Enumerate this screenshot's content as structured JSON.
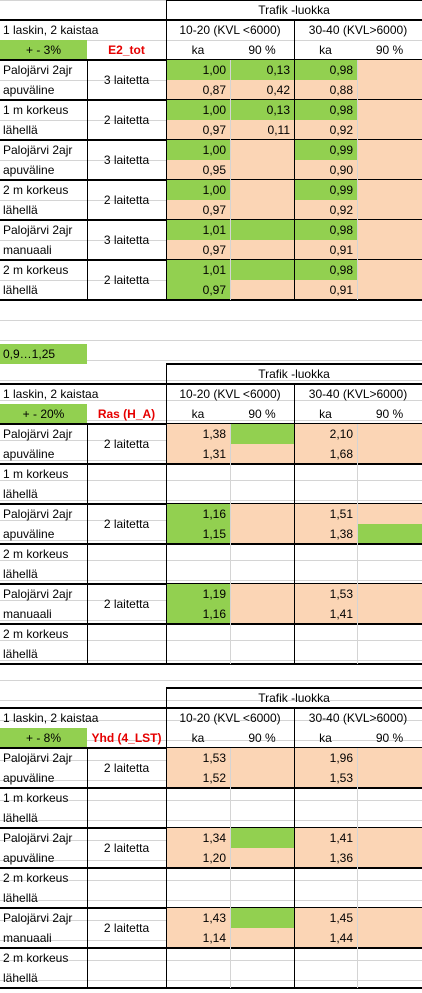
{
  "blocks": [
    {
      "lead": "",
      "header": "Trafik -luokka",
      "laskin": "1 laskin, 2 kaistaa",
      "tol": "+ - 3%",
      "metric": "E2_tot",
      "c1": "10-20 (KVL <6000)",
      "c2": "30-40 (KVL>6000)",
      "ka": "ka",
      "p90": "90 %",
      "groups": [
        {
          "l1": "Palojärvi 2ajr",
          "l2": "apuväline",
          "dev": "3 laitetta",
          "rows": [
            {
              "a": "1,00",
              "b": "0,13",
              "c": "0,98",
              "d": ""
            },
            {
              "a": "0,87",
              "b": "0,42",
              "c": "0,88",
              "d": ""
            }
          ]
        },
        {
          "l1": "1 m korkeus",
          "l2": "lähellä",
          "dev": "2 laitetta",
          "rows": [
            {
              "a": "1,00",
              "b": "0,13",
              "c": "0,98",
              "d": ""
            },
            {
              "a": "0,97",
              "b": "0,11",
              "c": "0,92",
              "d": ""
            }
          ]
        },
        {
          "l1": "Palojärvi 2ajr",
          "l2": "apuväline",
          "dev": "3 laitetta",
          "rows": [
            {
              "a": "1,00",
              "b": "",
              "c": "0,99",
              "d": ""
            },
            {
              "a": "0,95",
              "b": "",
              "c": "0,90",
              "d": ""
            }
          ]
        },
        {
          "l1": "2 m korkeus",
          "l2": "lähellä",
          "dev": "2 laitetta",
          "rows": [
            {
              "a": "1,00",
              "b": "",
              "c": "0,99",
              "d": ""
            },
            {
              "a": "0,97",
              "b": "",
              "c": "0,92",
              "d": ""
            }
          ]
        },
        {
          "l1": "Palojärvi 2ajr",
          "l2": "manuaali",
          "dev": "3 laitetta",
          "rows": [
            {
              "a": "1,01",
              "b": "",
              "c": "0,98",
              "d": ""
            },
            {
              "a": "0,97",
              "b": "",
              "c": "0,91",
              "d": ""
            }
          ]
        },
        {
          "l1": "2 m korkeus",
          "l2": "lähellä",
          "dev": "2 laitetta",
          "rows": [
            {
              "a": "1,01",
              "b": "",
              "c": "0,98",
              "d": ""
            },
            {
              "a": "0,97",
              "b": "",
              "c": "0,91",
              "d": ""
            }
          ]
        }
      ]
    },
    {
      "lead": "0,9…1,25",
      "header": "Trafik -luokka",
      "laskin": "1 laskin, 2 kaistaa",
      "tol": "+ - 20%",
      "metric": "Ras (H_A)",
      "c1": "10-20 (KVL <6000)",
      "c2": "30-40 (KVL>6000)",
      "ka": "ka",
      "p90": "90 %",
      "groups": [
        {
          "l1": "Palojärvi 2ajr",
          "l2": "apuväline",
          "dev": "2 laitetta",
          "rows": [
            {
              "a": "1,38",
              "b": "",
              "c": "2,10",
              "d": ""
            },
            {
              "a": "1,31",
              "b": "",
              "c": "1,68",
              "d": ""
            }
          ]
        },
        {
          "l1": "1 m korkeus",
          "l2": "lähellä",
          "dev": "",
          "rows": [
            {
              "a": "",
              "b": "",
              "c": "",
              "d": ""
            },
            {
              "a": "",
              "b": "",
              "c": "",
              "d": ""
            }
          ]
        },
        {
          "l1": "Palojärvi 2ajr",
          "l2": "apuväline",
          "dev": "2 laitetta",
          "rows": [
            {
              "a": "1,16",
              "b": "",
              "c": "1,51",
              "d": ""
            },
            {
              "a": "1,15",
              "b": "",
              "c": "1,38",
              "d": ""
            }
          ]
        },
        {
          "l1": "2 m korkeus",
          "l2": "lähellä",
          "dev": "",
          "rows": [
            {
              "a": "",
              "b": "",
              "c": "",
              "d": ""
            },
            {
              "a": "",
              "b": "",
              "c": "",
              "d": ""
            }
          ]
        },
        {
          "l1": "Palojärvi 2ajr",
          "l2": "manuaali",
          "dev": "2 laitetta",
          "rows": [
            {
              "a": "1,19",
              "b": "",
              "c": "1,53",
              "d": ""
            },
            {
              "a": "1,16",
              "b": "",
              "c": "1,41",
              "d": ""
            }
          ]
        },
        {
          "l1": "2 m korkeus",
          "l2": "lähellä",
          "dev": "",
          "rows": [
            {
              "a": "",
              "b": "",
              "c": "",
              "d": ""
            },
            {
              "a": "",
              "b": "",
              "c": "",
              "d": ""
            }
          ]
        }
      ]
    },
    {
      "lead": "",
      "header": "Trafik -luokka",
      "laskin": "1 laskin, 2 kaistaa",
      "tol": "+ - 8%",
      "metric": "Yhd (4_LST)",
      "c1": "10-20 (KVL <6000)",
      "c2": "30-40 (KVL>6000)",
      "ka": "ka",
      "p90": "90 %",
      "groups": [
        {
          "l1": "Palojärvi 2ajr",
          "l2": "apuväline",
          "dev": "2 laitetta",
          "rows": [
            {
              "a": "1,53",
              "b": "",
              "c": "1,96",
              "d": ""
            },
            {
              "a": "1,52",
              "b": "",
              "c": "1,53",
              "d": ""
            }
          ]
        },
        {
          "l1": "1 m korkeus",
          "l2": "lähellä",
          "dev": "",
          "rows": [
            {
              "a": "",
              "b": "",
              "c": "",
              "d": ""
            },
            {
              "a": "",
              "b": "",
              "c": "",
              "d": ""
            }
          ]
        },
        {
          "l1": "Palojärvi 2ajr",
          "l2": "apuväline",
          "dev": "2 laitetta",
          "rows": [
            {
              "a": "1,34",
              "b": "",
              "c": "1,41",
              "d": ""
            },
            {
              "a": "1,20",
              "b": "",
              "c": "1,36",
              "d": ""
            }
          ]
        },
        {
          "l1": "2 m korkeus",
          "l2": "lähellä",
          "dev": "",
          "rows": [
            {
              "a": "",
              "b": "",
              "c": "",
              "d": ""
            },
            {
              "a": "",
              "b": "",
              "c": "",
              "d": ""
            }
          ]
        },
        {
          "l1": "Palojärvi 2ajr",
          "l2": "manuaali",
          "dev": "2 laitetta",
          "rows": [
            {
              "a": "1,43",
              "b": "",
              "c": "1,45",
              "d": ""
            },
            {
              "a": "1,14",
              "b": "",
              "c": "1,44",
              "d": ""
            }
          ]
        },
        {
          "l1": "2 m korkeus",
          "l2": "lähellä",
          "dev": "",
          "rows": [
            {
              "a": "",
              "b": "",
              "c": "",
              "d": ""
            },
            {
              "a": "",
              "b": "",
              "c": "",
              "d": ""
            }
          ]
        }
      ]
    }
  ],
  "colors": {
    "green": "#92d050",
    "peach": "#fbd5b5",
    "red": "#e60000",
    "grid": "#d4d4d4"
  },
  "fills": [
    [
      [
        "gp",
        "gp",
        "gp",
        "p"
      ],
      [
        "pp",
        "pp",
        "pp",
        "p"
      ],
      [
        "gp",
        "gp",
        "gp",
        "p"
      ],
      [
        "pp",
        "pp",
        "pp",
        "p"
      ],
      [
        "gp",
        "p",
        "gp",
        "p"
      ],
      [
        "pp",
        "p",
        "pp",
        "p"
      ],
      [
        "gp",
        "p",
        "gp",
        "p"
      ],
      [
        "pp",
        "p",
        "pp",
        "p"
      ],
      [
        "gp",
        "g",
        "gp",
        "p"
      ],
      [
        "pp",
        "p",
        "pp",
        "p"
      ],
      [
        "gp",
        "g",
        "gp",
        "p"
      ],
      [
        "gp",
        "p",
        "pp",
        "p"
      ]
    ],
    [
      [
        "pp",
        "g",
        "pp",
        "p"
      ],
      [
        "pp",
        "p",
        "pp",
        "p"
      ],
      [
        "",
        "",
        "",
        ""
      ],
      [
        "",
        "",
        "",
        ""
      ],
      [
        "gp",
        "p",
        "pp",
        "p"
      ],
      [
        "gp",
        "p",
        "pp",
        "g"
      ],
      [
        "",
        "",
        "",
        ""
      ],
      [
        "",
        "",
        "",
        ""
      ],
      [
        "gp",
        "p",
        "pp",
        "p"
      ],
      [
        "gp",
        "p",
        "pp",
        "p"
      ],
      [
        "",
        "",
        "",
        ""
      ],
      [
        "",
        "",
        "",
        ""
      ]
    ],
    [
      [
        "pp",
        "p",
        "pp",
        "p"
      ],
      [
        "pp",
        "p",
        "pp",
        "p"
      ],
      [
        "",
        "",
        "",
        ""
      ],
      [
        "",
        "",
        "",
        ""
      ],
      [
        "pp",
        "g",
        "pp",
        "p"
      ],
      [
        "pp",
        "p",
        "pp",
        "p"
      ],
      [
        "",
        "",
        "",
        ""
      ],
      [
        "",
        "",
        "",
        ""
      ],
      [
        "pp",
        "g",
        "pp",
        "p"
      ],
      [
        "pp",
        "p",
        "pp",
        "p"
      ],
      [
        "",
        "",
        "",
        ""
      ],
      [
        "",
        "",
        "",
        ""
      ]
    ]
  ]
}
